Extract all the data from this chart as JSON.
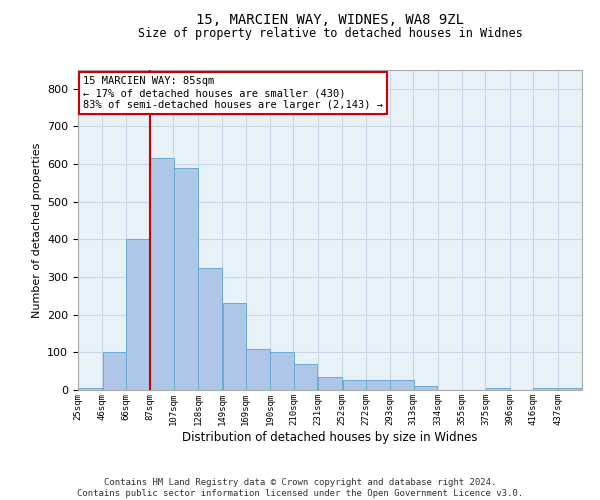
{
  "title_line1": "15, MARCIEN WAY, WIDNES, WA8 9ZL",
  "title_line2": "Size of property relative to detached houses in Widnes",
  "xlabel": "Distribution of detached houses by size in Widnes",
  "ylabel": "Number of detached properties",
  "footer": "Contains HM Land Registry data © Crown copyright and database right 2024.\nContains public sector information licensed under the Open Government Licence v3.0.",
  "annotation_title": "15 MARCIEN WAY: 85sqm",
  "annotation_line1": "← 17% of detached houses are smaller (430)",
  "annotation_line2": "83% of semi-detached houses are larger (2,143) →",
  "property_line_x": 87,
  "bins": [
    25,
    46,
    66,
    87,
    107,
    128,
    149,
    169,
    190,
    210,
    231,
    252,
    272,
    293,
    313,
    334,
    355,
    375,
    396,
    416,
    437
  ],
  "heights": [
    5,
    100,
    400,
    615,
    590,
    325,
    230,
    110,
    100,
    70,
    35,
    27,
    27,
    27,
    10,
    0,
    0,
    5,
    0,
    5,
    5
  ],
  "bar_color": "#aec6e8",
  "bar_edge_color": "#6aaad4",
  "vline_color": "#cc0000",
  "annotation_box_color": "#cc0000",
  "grid_color": "#c8d8e8",
  "background_color": "#e8f0f8",
  "ylim": [
    0,
    850
  ],
  "yticks": [
    0,
    100,
    200,
    300,
    400,
    500,
    600,
    700,
    800
  ],
  "xlim_left": 25,
  "xlim_right": 458
}
